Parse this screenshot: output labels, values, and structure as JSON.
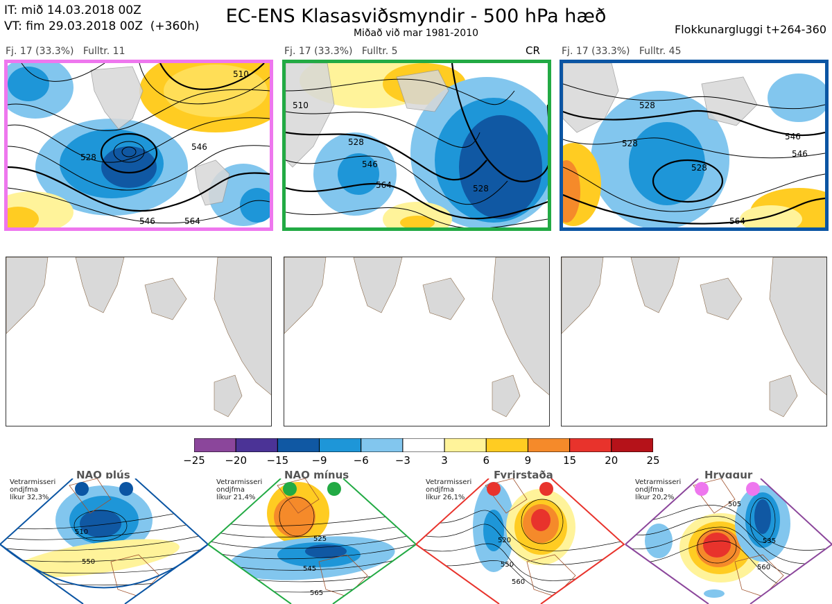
{
  "header": {
    "it_line": "IT: mið 14.03.2018 00Z",
    "vt_line": "VT: fim 29.03.2018 00Z  (+360h)",
    "title": "EC-ENS Klasasviðsmyndir - 500 hPa hæð",
    "subtitle": "Miðað við mar 1981-2010",
    "window": "Flokkunargluggi t+264-360"
  },
  "panels": [
    {
      "label": "Fj. 17 (33.3%)   Fulltr. 11",
      "border": "#ee77ee",
      "cr": ""
    },
    {
      "label": "Fj. 17 (33.3%)   Fulltr. 5",
      "border": "#22aa44",
      "cr": "CR"
    },
    {
      "label": "Fj. 17 (33.3%)   Fulltr. 45",
      "border": "#0b55a3",
      "cr": ""
    }
  ],
  "contour_labels": {
    "p1": [
      "528",
      "546",
      "510",
      "546",
      "564"
    ],
    "p2": [
      "510",
      "528",
      "546",
      "564",
      "528"
    ],
    "p3": [
      "528",
      "528",
      "528",
      "546",
      "546",
      "564"
    ]
  },
  "colorbar": {
    "ticks": [
      "−25",
      "−20",
      "−15",
      "−9",
      "−6",
      "−3",
      "3",
      "6",
      "9",
      "15",
      "20",
      "25"
    ],
    "colors": [
      "#8b469b",
      "#4b3396",
      "#1058a3",
      "#1e96d8",
      "#82c6ee",
      "#ffffff",
      "#fff39a",
      "#ffcc22",
      "#f58a2a",
      "#e8332c",
      "#b51219"
    ]
  },
  "regimes": [
    {
      "name": "NAO plús",
      "line1": "Vetrarmisseri",
      "line2": "ondjfma",
      "line3": "líkur 32,3%",
      "color": "#0b55a3",
      "labels": [
        "510",
        "550"
      ]
    },
    {
      "name": "NAO mínus",
      "line1": "Vetrarmisseri",
      "line2": "ondjfma",
      "line3": "líkur 21,4%",
      "color": "#22aa44",
      "labels": [
        "525",
        "545",
        "565"
      ]
    },
    {
      "name": "Fyrirstaða",
      "line1": "Vetrarmisseri",
      "line2": "ondjfma",
      "line3": "líkur 26,1%",
      "color": "#e8332c",
      "labels": [
        "520",
        "550",
        "560"
      ]
    },
    {
      "name": "Hryggur",
      "line1": "Vetrarmisseri",
      "line2": "ondjfma",
      "line3": "líkur 20,2%",
      "color": "#ee77ee",
      "labels": [
        "505",
        "535",
        "560"
      ]
    }
  ]
}
